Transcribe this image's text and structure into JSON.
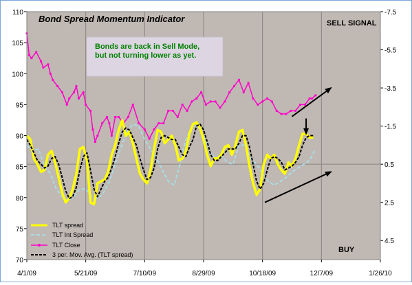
{
  "chart_data": {
    "type": "line",
    "title": "Bond Spread Momentum Indicator",
    "annotation": {
      "note_line1": "Bonds are back in Sell Mode,",
      "note_line2": "but not turning lower as yet.",
      "sell_signal": "SELL SIGNAL",
      "buy": "BUY"
    },
    "x_tick_labels": [
      "4/1/09",
      "5/21/09",
      "7/10/09",
      "8/29/09",
      "10/18/09",
      "12/7/09",
      "1/26/10"
    ],
    "x_ticks": [
      0,
      50,
      100,
      150,
      200,
      250,
      300
    ],
    "x_range": [
      0,
      300
    ],
    "y_left": {
      "range": [
        70,
        110
      ],
      "ticks": [
        70,
        75,
        80,
        85,
        90,
        95,
        100,
        105,
        110
      ]
    },
    "y_right": {
      "range": [
        -7.5,
        5.5
      ],
      "inverted": true,
      "ticks": [
        4.5,
        2.5,
        0.5,
        -1.5,
        -3.5,
        -5.5,
        -7.5
      ]
    },
    "legend": {
      "placement": "bottom-left",
      "items": [
        "TLT spread",
        "TLT Int Spread",
        "TLT Close",
        "3 per. Mov. Avg. (TLT spread)"
      ]
    },
    "series": [
      {
        "name": "TLT Close",
        "axis": "left",
        "color": "#ff00cc",
        "x": [
          0,
          2,
          4,
          8,
          12,
          14,
          18,
          20,
          22,
          26,
          30,
          34,
          36,
          40,
          42,
          44,
          48,
          50,
          54,
          56,
          58,
          60,
          64,
          68,
          70,
          72,
          75,
          78,
          82,
          86,
          90,
          95,
          100,
          104,
          108,
          112,
          116,
          120,
          124,
          128,
          132,
          136,
          140,
          144,
          148,
          152,
          156,
          160,
          164,
          168,
          172,
          176,
          180,
          184,
          188,
          192,
          196,
          200,
          204,
          208,
          212,
          216,
          220,
          224,
          228,
          232,
          236,
          240,
          242,
          245
        ],
        "values": [
          106.5,
          103,
          102.5,
          103.5,
          102,
          101,
          101.5,
          100,
          99,
          98,
          97,
          95,
          96,
          97,
          98,
          96,
          97,
          95,
          94,
          91,
          89,
          90,
          92,
          93,
          92,
          90,
          93,
          93,
          92,
          93,
          95,
          92,
          91,
          89.5,
          91,
          92,
          92,
          94,
          94,
          93,
          95,
          94,
          95.5,
          96,
          97,
          95,
          95.5,
          95.5,
          94.5,
          95.5,
          97,
          98,
          99,
          97,
          98.5,
          96,
          95,
          95.5,
          96,
          95.5,
          94,
          93.5,
          93.5,
          94,
          94,
          95,
          95,
          96,
          96,
          96.5
        ]
      },
      {
        "name": "TLT Int Spread",
        "axis": "right",
        "color": "#a8dde8",
        "x": [
          0,
          5,
          10,
          15,
          20,
          25,
          30,
          35,
          40,
          45,
          50,
          55,
          60,
          65,
          70,
          75,
          80,
          85,
          90,
          95,
          100,
          105,
          110,
          115,
          120,
          125,
          130,
          135,
          140,
          145,
          150,
          155,
          160,
          165,
          170,
          175,
          180,
          185,
          190,
          195,
          200,
          205,
          210,
          215,
          220,
          225,
          230,
          235,
          240,
          245
        ],
        "values": [
          -0.5,
          -0.2,
          -0.3,
          0.6,
          1.0,
          1.8,
          2.2,
          2.4,
          2.2,
          1.8,
          1.8,
          2.2,
          2.3,
          2.0,
          1.4,
          0.5,
          -0.4,
          -1.2,
          -1.6,
          -1.5,
          -0.8,
          -0.3,
          0.2,
          0.8,
          1.4,
          1.6,
          0.5,
          -0.8,
          -1.5,
          -1.5,
          -1.0,
          -0.2,
          0.2,
          0.0,
          0.4,
          0.5,
          -0.5,
          -0.5,
          0.2,
          0.5,
          1.0,
          1.4,
          1.6,
          1.4,
          1.2,
          0.9,
          0.7,
          0.5,
          0.3,
          -0.3
        ]
      },
      {
        "name": "TLT spread",
        "axis": "right",
        "color": "#ffff00",
        "x": [
          0,
          3,
          6,
          9,
          12,
          15,
          18,
          21,
          24,
          27,
          30,
          33,
          36,
          39,
          42,
          45,
          48,
          51,
          54,
          57,
          60,
          63,
          66,
          69,
          72,
          75,
          78,
          81,
          84,
          87,
          90,
          93,
          96,
          99,
          102,
          105,
          108,
          111,
          114,
          117,
          120,
          123,
          126,
          129,
          132,
          135,
          138,
          141,
          144,
          147,
          150,
          153,
          156,
          159,
          162,
          165,
          168,
          171,
          174,
          177,
          180,
          183,
          186,
          189,
          192,
          195,
          198,
          201,
          204,
          207,
          210,
          213,
          216,
          219,
          222,
          225,
          228,
          231,
          234,
          237,
          240,
          243
        ],
        "values": [
          -1.0,
          -0.8,
          0.2,
          0.5,
          0.9,
          0.8,
          0.0,
          -0.2,
          0.4,
          1.2,
          2.0,
          2.5,
          2.3,
          1.8,
          1.0,
          -0.3,
          -0.4,
          0.3,
          2.5,
          2.6,
          1.5,
          1.4,
          1.3,
          0.9,
          0.0,
          -0.5,
          -1.3,
          -1.8,
          -1.0,
          -1.2,
          -0.6,
          0.2,
          1.0,
          1.3,
          1.5,
          0.8,
          -0.3,
          -1.3,
          -1.2,
          -0.6,
          -0.8,
          -1.0,
          -0.5,
          0.3,
          0.2,
          -0.2,
          -1.1,
          -1.6,
          -1.7,
          -1.4,
          -0.8,
          0.0,
          0.6,
          0.2,
          0.2,
          0.0,
          -0.4,
          -0.5,
          0.0,
          -0.5,
          -1.2,
          -1.3,
          -0.5,
          0.6,
          1.5,
          2.1,
          1.8,
          0.5,
          0.0,
          0.2,
          0.0,
          0.5,
          0.8,
          1.0,
          0.4,
          0.6,
          0.2,
          -0.5,
          -1.1,
          -1.1,
          -0.9,
          -0.9
        ]
      },
      {
        "name": "3 per. Mov. Avg. (TLT spread)",
        "axis": "right",
        "color": "#000000",
        "x": [
          0,
          3,
          6,
          9,
          12,
          15,
          18,
          21,
          24,
          27,
          30,
          33,
          36,
          39,
          42,
          45,
          48,
          51,
          54,
          57,
          60,
          63,
          66,
          69,
          72,
          75,
          78,
          81,
          84,
          87,
          90,
          93,
          96,
          99,
          102,
          105,
          108,
          111,
          114,
          117,
          120,
          123,
          126,
          129,
          132,
          135,
          138,
          141,
          144,
          147,
          150,
          153,
          156,
          159,
          162,
          165,
          168,
          171,
          174,
          177,
          180,
          183,
          186,
          189,
          192,
          195,
          198,
          201,
          204,
          207,
          210,
          213,
          216,
          219,
          222,
          225,
          228,
          231,
          234,
          237,
          240,
          243
        ],
        "values": [
          -0.8,
          -0.5,
          -0.1,
          0.3,
          0.5,
          0.7,
          0.6,
          0.2,
          0.1,
          0.5,
          1.2,
          1.9,
          2.3,
          2.2,
          1.7,
          0.8,
          0.1,
          -0.1,
          0.8,
          1.8,
          2.2,
          1.8,
          1.4,
          1.2,
          0.7,
          0.1,
          -0.6,
          -1.2,
          -1.4,
          -1.3,
          -0.9,
          -0.5,
          0.2,
          0.8,
          1.3,
          1.2,
          0.7,
          -0.3,
          -0.9,
          -1.0,
          -0.9,
          -0.8,
          -0.8,
          -0.4,
          0.0,
          0.1,
          -0.4,
          -0.8,
          -1.5,
          -1.6,
          -1.3,
          -0.7,
          0.0,
          0.3,
          0.3,
          0.1,
          -0.1,
          -0.3,
          -0.3,
          -0.3,
          -0.6,
          -1.0,
          -1.0,
          -0.4,
          0.5,
          1.4,
          1.8,
          1.5,
          0.8,
          0.2,
          0.1,
          0.2,
          0.4,
          0.8,
          0.7,
          0.6,
          0.4,
          0.1,
          -0.5,
          -0.9,
          -1.0,
          -1.0
        ]
      }
    ],
    "arrows": [
      {
        "kind": "line",
        "from": [
          202,
          2.5
        ],
        "to": [
          258,
          0.9
        ]
      },
      {
        "kind": "line",
        "from": [
          225,
          -2.0
        ],
        "to": [
          258,
          -3.5
        ]
      },
      {
        "kind": "marker",
        "from": [
          237,
          -1.9
        ],
        "to": [
          237,
          -1.1
        ]
      }
    ]
  }
}
